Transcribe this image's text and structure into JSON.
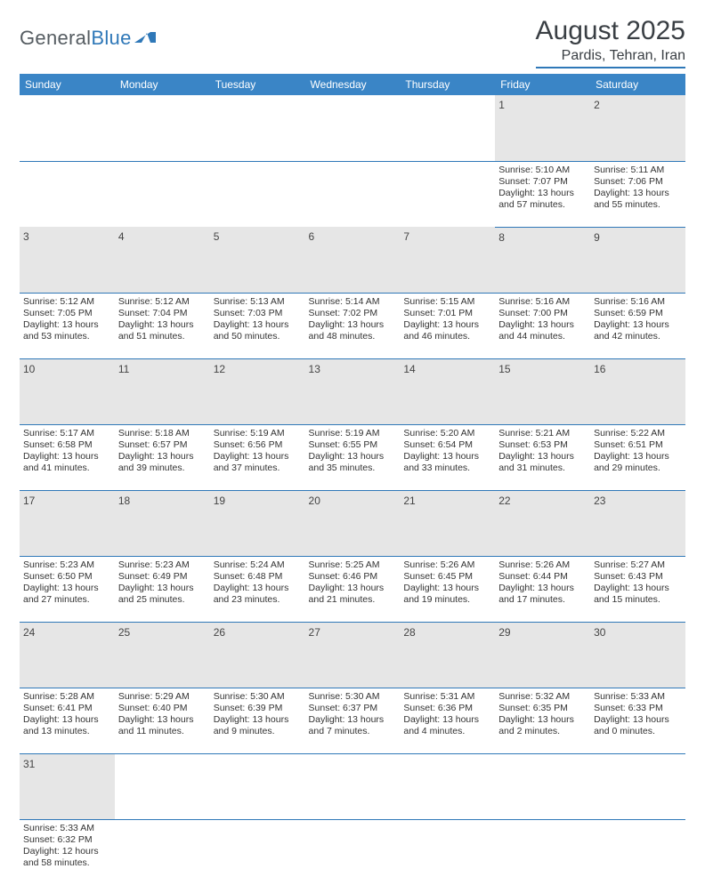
{
  "logo": {
    "general": "General",
    "blue": "Blue"
  },
  "header": {
    "monthYear": "August 2025",
    "location": "Pardis, Tehran, Iran"
  },
  "colors": {
    "accent": "#3a85c6",
    "underline": "#2f78b8",
    "dayHeaderBg": "#e6e6e6",
    "textDark": "#3a3f44"
  },
  "dayNames": [
    "Sunday",
    "Monday",
    "Tuesday",
    "Wednesday",
    "Thursday",
    "Friday",
    "Saturday"
  ],
  "weeks": [
    [
      null,
      null,
      null,
      null,
      null,
      {
        "n": "1",
        "sr": "Sunrise: 5:10 AM",
        "ss": "Sunset: 7:07 PM",
        "dl1": "Daylight: 13 hours",
        "dl2": "and 57 minutes."
      },
      {
        "n": "2",
        "sr": "Sunrise: 5:11 AM",
        "ss": "Sunset: 7:06 PM",
        "dl1": "Daylight: 13 hours",
        "dl2": "and 55 minutes."
      }
    ],
    [
      {
        "n": "3",
        "sr": "Sunrise: 5:12 AM",
        "ss": "Sunset: 7:05 PM",
        "dl1": "Daylight: 13 hours",
        "dl2": "and 53 minutes."
      },
      {
        "n": "4",
        "sr": "Sunrise: 5:12 AM",
        "ss": "Sunset: 7:04 PM",
        "dl1": "Daylight: 13 hours",
        "dl2": "and 51 minutes."
      },
      {
        "n": "5",
        "sr": "Sunrise: 5:13 AM",
        "ss": "Sunset: 7:03 PM",
        "dl1": "Daylight: 13 hours",
        "dl2": "and 50 minutes."
      },
      {
        "n": "6",
        "sr": "Sunrise: 5:14 AM",
        "ss": "Sunset: 7:02 PM",
        "dl1": "Daylight: 13 hours",
        "dl2": "and 48 minutes."
      },
      {
        "n": "7",
        "sr": "Sunrise: 5:15 AM",
        "ss": "Sunset: 7:01 PM",
        "dl1": "Daylight: 13 hours",
        "dl2": "and 46 minutes."
      },
      {
        "n": "8",
        "sr": "Sunrise: 5:16 AM",
        "ss": "Sunset: 7:00 PM",
        "dl1": "Daylight: 13 hours",
        "dl2": "and 44 minutes."
      },
      {
        "n": "9",
        "sr": "Sunrise: 5:16 AM",
        "ss": "Sunset: 6:59 PM",
        "dl1": "Daylight: 13 hours",
        "dl2": "and 42 minutes."
      }
    ],
    [
      {
        "n": "10",
        "sr": "Sunrise: 5:17 AM",
        "ss": "Sunset: 6:58 PM",
        "dl1": "Daylight: 13 hours",
        "dl2": "and 41 minutes."
      },
      {
        "n": "11",
        "sr": "Sunrise: 5:18 AM",
        "ss": "Sunset: 6:57 PM",
        "dl1": "Daylight: 13 hours",
        "dl2": "and 39 minutes."
      },
      {
        "n": "12",
        "sr": "Sunrise: 5:19 AM",
        "ss": "Sunset: 6:56 PM",
        "dl1": "Daylight: 13 hours",
        "dl2": "and 37 minutes."
      },
      {
        "n": "13",
        "sr": "Sunrise: 5:19 AM",
        "ss": "Sunset: 6:55 PM",
        "dl1": "Daylight: 13 hours",
        "dl2": "and 35 minutes."
      },
      {
        "n": "14",
        "sr": "Sunrise: 5:20 AM",
        "ss": "Sunset: 6:54 PM",
        "dl1": "Daylight: 13 hours",
        "dl2": "and 33 minutes."
      },
      {
        "n": "15",
        "sr": "Sunrise: 5:21 AM",
        "ss": "Sunset: 6:53 PM",
        "dl1": "Daylight: 13 hours",
        "dl2": "and 31 minutes."
      },
      {
        "n": "16",
        "sr": "Sunrise: 5:22 AM",
        "ss": "Sunset: 6:51 PM",
        "dl1": "Daylight: 13 hours",
        "dl2": "and 29 minutes."
      }
    ],
    [
      {
        "n": "17",
        "sr": "Sunrise: 5:23 AM",
        "ss": "Sunset: 6:50 PM",
        "dl1": "Daylight: 13 hours",
        "dl2": "and 27 minutes."
      },
      {
        "n": "18",
        "sr": "Sunrise: 5:23 AM",
        "ss": "Sunset: 6:49 PM",
        "dl1": "Daylight: 13 hours",
        "dl2": "and 25 minutes."
      },
      {
        "n": "19",
        "sr": "Sunrise: 5:24 AM",
        "ss": "Sunset: 6:48 PM",
        "dl1": "Daylight: 13 hours",
        "dl2": "and 23 minutes."
      },
      {
        "n": "20",
        "sr": "Sunrise: 5:25 AM",
        "ss": "Sunset: 6:46 PM",
        "dl1": "Daylight: 13 hours",
        "dl2": "and 21 minutes."
      },
      {
        "n": "21",
        "sr": "Sunrise: 5:26 AM",
        "ss": "Sunset: 6:45 PM",
        "dl1": "Daylight: 13 hours",
        "dl2": "and 19 minutes."
      },
      {
        "n": "22",
        "sr": "Sunrise: 5:26 AM",
        "ss": "Sunset: 6:44 PM",
        "dl1": "Daylight: 13 hours",
        "dl2": "and 17 minutes."
      },
      {
        "n": "23",
        "sr": "Sunrise: 5:27 AM",
        "ss": "Sunset: 6:43 PM",
        "dl1": "Daylight: 13 hours",
        "dl2": "and 15 minutes."
      }
    ],
    [
      {
        "n": "24",
        "sr": "Sunrise: 5:28 AM",
        "ss": "Sunset: 6:41 PM",
        "dl1": "Daylight: 13 hours",
        "dl2": "and 13 minutes."
      },
      {
        "n": "25",
        "sr": "Sunrise: 5:29 AM",
        "ss": "Sunset: 6:40 PM",
        "dl1": "Daylight: 13 hours",
        "dl2": "and 11 minutes."
      },
      {
        "n": "26",
        "sr": "Sunrise: 5:30 AM",
        "ss": "Sunset: 6:39 PM",
        "dl1": "Daylight: 13 hours",
        "dl2": "and 9 minutes."
      },
      {
        "n": "27",
        "sr": "Sunrise: 5:30 AM",
        "ss": "Sunset: 6:37 PM",
        "dl1": "Daylight: 13 hours",
        "dl2": "and 7 minutes."
      },
      {
        "n": "28",
        "sr": "Sunrise: 5:31 AM",
        "ss": "Sunset: 6:36 PM",
        "dl1": "Daylight: 13 hours",
        "dl2": "and 4 minutes."
      },
      {
        "n": "29",
        "sr": "Sunrise: 5:32 AM",
        "ss": "Sunset: 6:35 PM",
        "dl1": "Daylight: 13 hours",
        "dl2": "and 2 minutes."
      },
      {
        "n": "30",
        "sr": "Sunrise: 5:33 AM",
        "ss": "Sunset: 6:33 PM",
        "dl1": "Daylight: 13 hours",
        "dl2": "and 0 minutes."
      }
    ],
    [
      {
        "n": "31",
        "sr": "Sunrise: 5:33 AM",
        "ss": "Sunset: 6:32 PM",
        "dl1": "Daylight: 12 hours",
        "dl2": "and 58 minutes."
      },
      null,
      null,
      null,
      null,
      null,
      null
    ]
  ]
}
